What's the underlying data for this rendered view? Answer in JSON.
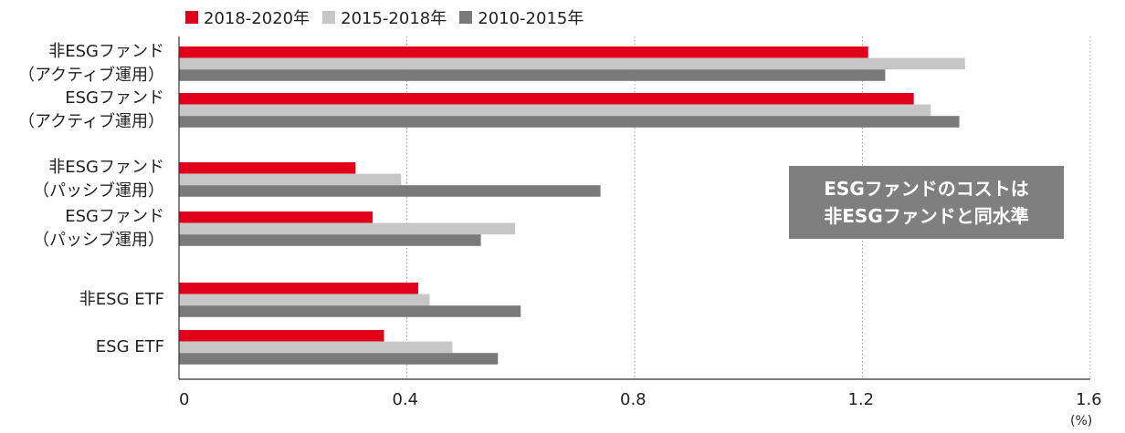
{
  "chart_data": {
    "type": "bar",
    "orientation": "horizontal",
    "categories": [
      [
        "非ESGファンド",
        "（アクティブ運用）"
      ],
      [
        "ESGファンド",
        "（アクティブ運用）"
      ],
      [
        "非ESGファンド",
        "（パッシブ運用）"
      ],
      [
        "ESGファンド",
        "（パッシブ運用）"
      ],
      [
        "非ESG ETF"
      ],
      [
        "ESG ETF"
      ]
    ],
    "series": [
      {
        "name": "2018-2020年",
        "color": "#e0001b",
        "values": [
          1.21,
          1.29,
          0.31,
          0.34,
          0.42,
          0.36
        ]
      },
      {
        "name": "2015-2018年",
        "color": "#c6c6c6",
        "values": [
          1.38,
          1.32,
          0.39,
          0.59,
          0.44,
          0.48
        ]
      },
      {
        "name": "2010-2015年",
        "color": "#7a7a7a",
        "values": [
          1.24,
          1.37,
          0.74,
          0.53,
          0.6,
          0.56
        ]
      }
    ],
    "xlim": [
      0,
      1.6
    ],
    "xticks": [
      "0",
      "0.4",
      "0.8",
      "1.2",
      "1.6"
    ],
    "xtick_values": [
      0,
      0.4,
      0.8,
      1.2,
      1.6
    ],
    "unit": "(%)",
    "grid": "vertical-dotted",
    "legend": "top-left"
  },
  "annotation": {
    "lines": [
      "ESGファンドのコストは",
      "非ESGファンドと同水準"
    ]
  }
}
